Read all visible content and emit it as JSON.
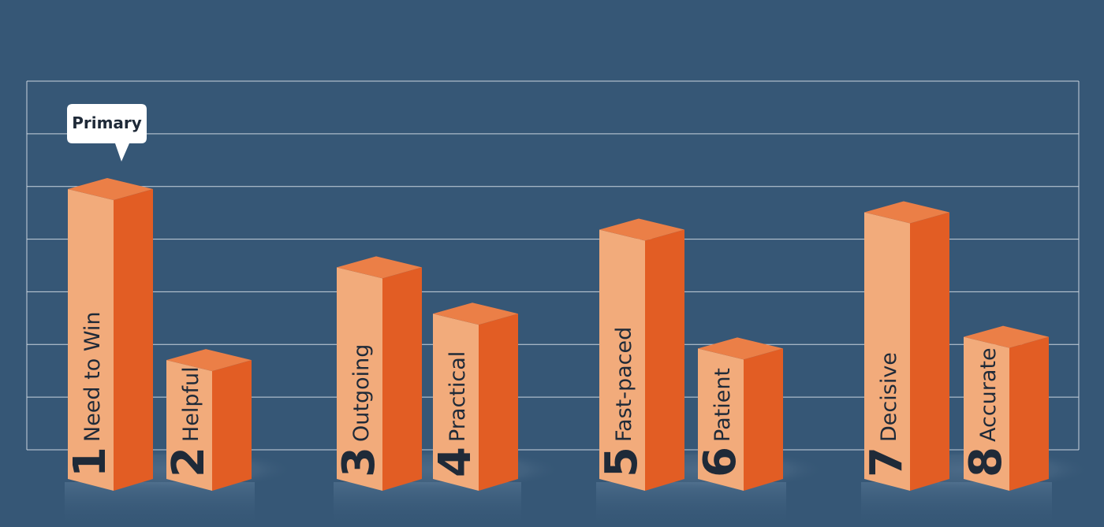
{
  "chart_data": {
    "type": "bar",
    "title": "",
    "xlabel": "",
    "ylabel": "",
    "ylim": [
      0,
      7
    ],
    "grid": true,
    "categories": [
      "1",
      "2",
      "3",
      "4",
      "5",
      "6",
      "7",
      "8"
    ],
    "labels": [
      "Need to Win",
      "Helpful",
      "Outgoing",
      "Practical",
      "Fast-paced",
      "Patient",
      "Decisive",
      "Accurate"
    ],
    "values": [
      5.0,
      2.05,
      3.65,
      2.85,
      4.3,
      2.25,
      4.6,
      2.45
    ],
    "annotations": [
      {
        "category": "1",
        "text": "Primary"
      }
    ]
  },
  "colors": {
    "background": "#365776",
    "grid": "#c9d3de",
    "bar_front": "#f2ab7b",
    "bar_side": "#e25d24",
    "bar_top": "#eb7f47",
    "text": "#1f2a38",
    "callout_bg": "#ffffff"
  }
}
